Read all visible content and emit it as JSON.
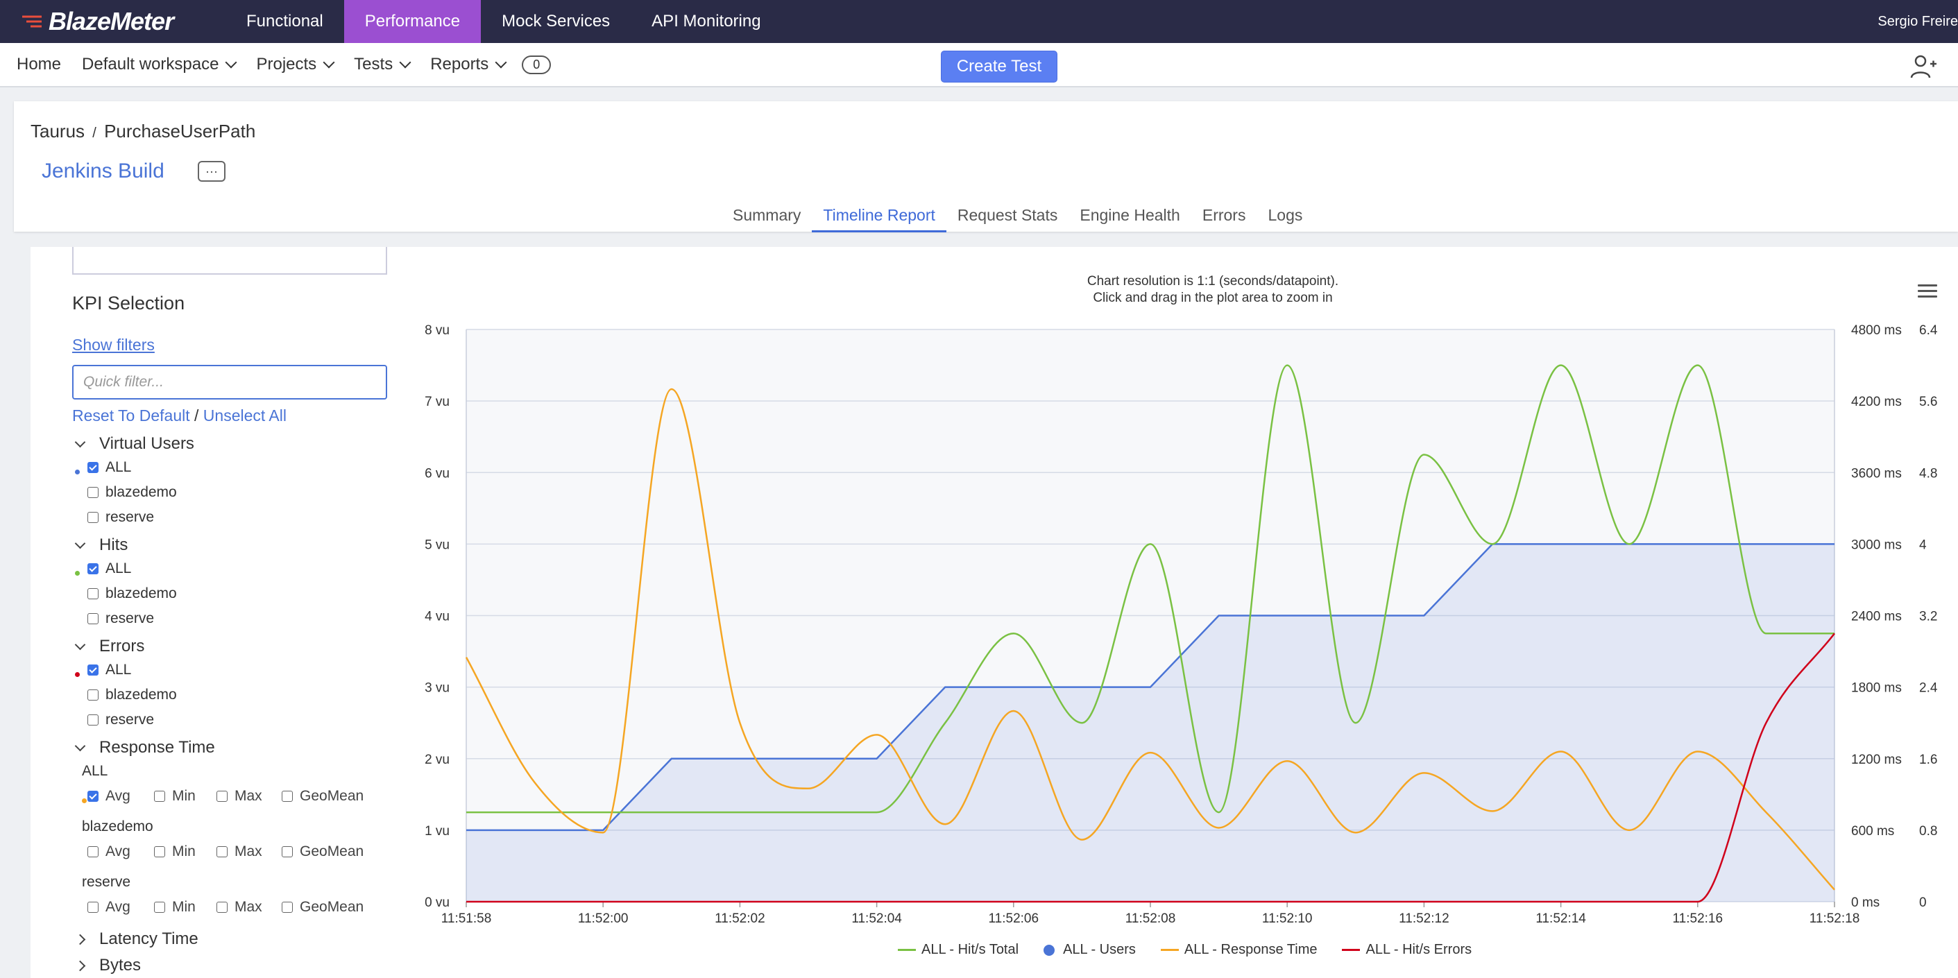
{
  "app": {
    "logo": "BlazeMeter",
    "top_nav": [
      "Functional",
      "Performance",
      "Mock Services",
      "API Monitoring"
    ],
    "active_top_nav": "Performance",
    "user": "Sergio Freire"
  },
  "subnav": {
    "home": "Home",
    "workspace": "Default workspace",
    "projects": "Projects",
    "tests": "Tests",
    "reports": "Reports",
    "reports_count": "0",
    "create_test": "Create Test"
  },
  "header": {
    "breadcrumb_project": "Taurus",
    "breadcrumb_sep": "/",
    "breadcrumb_test": "PurchaseUserPath",
    "title": "Jenkins Build",
    "more": "···",
    "tabs": [
      "Summary",
      "Timeline Report",
      "Request Stats",
      "Engine Health",
      "Errors",
      "Logs"
    ],
    "active_tab": "Timeline Report"
  },
  "kpi": {
    "title": "KPI Selection",
    "show_filters": "Show filters",
    "quick_filter_placeholder": "Quick filter...",
    "reset": "Reset To Default",
    "sep": "/",
    "unselect": "Unselect All",
    "groups": [
      {
        "label": "Virtual Users",
        "color": "#4a74d6",
        "items": [
          {
            "label": "ALL",
            "checked": true
          },
          {
            "label": "blazedemo",
            "checked": false
          },
          {
            "label": "reserve",
            "checked": false
          }
        ]
      },
      {
        "label": "Hits",
        "color": "#7ac143",
        "items": [
          {
            "label": "ALL",
            "checked": true
          },
          {
            "label": "blazedemo",
            "checked": false
          },
          {
            "label": "reserve",
            "checked": false
          }
        ]
      },
      {
        "label": "Errors",
        "color": "#d0021b",
        "items": [
          {
            "label": "ALL",
            "checked": true
          },
          {
            "label": "blazedemo",
            "checked": false
          },
          {
            "label": "reserve",
            "checked": false
          }
        ]
      }
    ],
    "response_time": {
      "label": "Response Time",
      "color": "#f5a623",
      "options": [
        "Avg",
        "Min",
        "Max",
        "GeoMean"
      ],
      "rows": [
        {
          "label": "ALL",
          "checked": [
            true,
            false,
            false,
            false
          ]
        },
        {
          "label": "blazedemo",
          "checked": [
            false,
            false,
            false,
            false
          ]
        },
        {
          "label": "reserve",
          "checked": [
            false,
            false,
            false,
            false
          ]
        }
      ]
    },
    "collapsed_groups": [
      "Latency Time",
      "Bytes"
    ]
  },
  "chart_note": [
    "Chart resolution is 1:1 (seconds/datapoint).",
    "Click and drag in the plot area to zoom in"
  ],
  "chart_data": {
    "type": "line",
    "x": [
      "11:51:58",
      "11:51:59",
      "11:52:00",
      "11:52:01",
      "11:52:02",
      "11:52:03",
      "11:52:04",
      "11:52:05",
      "11:52:06",
      "11:52:07",
      "11:52:08",
      "11:52:09",
      "11:52:10",
      "11:52:11",
      "11:52:12",
      "11:52:13",
      "11:52:14",
      "11:52:15",
      "11:52:16",
      "11:52:17",
      "11:52:18"
    ],
    "x_tick_labels": [
      "11:51:58",
      "11:52:00",
      "11:52:02",
      "11:52:04",
      "11:52:06",
      "11:52:08",
      "11:52:10",
      "11:52:12",
      "11:52:14",
      "11:52:16",
      "11:52:18"
    ],
    "y_left": {
      "ticks": [
        "0 vu",
        "1 vu",
        "2 vu",
        "3 vu",
        "4 vu",
        "5 vu",
        "6 vu",
        "7 vu",
        "8 vu"
      ],
      "range": [
        0,
        8
      ]
    },
    "y_right1": {
      "ticks": [
        "0 ms",
        "600 ms",
        "1200 ms",
        "1800 ms",
        "2400 ms",
        "3000 ms",
        "3600 ms",
        "4200 ms",
        "4800 ms"
      ],
      "range": [
        0,
        4800
      ]
    },
    "y_right2": {
      "ticks": [
        "0",
        "0.8",
        "1.6",
        "2.4",
        "3.2",
        "4",
        "4.8",
        "5.6",
        "6.4"
      ],
      "range": [
        0,
        6.4
      ]
    },
    "series": [
      {
        "name": "ALL - Users",
        "axis": "left",
        "color": "#4a74d6",
        "shape": "step-area",
        "values": [
          1,
          1,
          1,
          2,
          2,
          2,
          2,
          3,
          3,
          3,
          3,
          4,
          4,
          4,
          4,
          5,
          5,
          5,
          5,
          5,
          5
        ]
      },
      {
        "name": "ALL - Hit/s Total",
        "axis": "right2",
        "color": "#7ac143",
        "values": [
          1,
          1,
          1,
          1,
          1,
          1,
          1,
          2,
          3,
          2,
          4,
          1,
          6,
          2,
          5,
          4,
          6,
          4,
          6,
          3,
          3
        ]
      },
      {
        "name": "ALL - Response Time",
        "axis": "right1",
        "color": "#f5a623",
        "values": [
          2050,
          1000,
          580,
          4300,
          1500,
          950,
          1400,
          650,
          1600,
          520,
          1250,
          620,
          1180,
          580,
          1080,
          760,
          1260,
          600,
          1260,
          750,
          100
        ]
      },
      {
        "name": "ALL - Hit/s Errors",
        "axis": "right2",
        "color": "#d0021b",
        "values": [
          0,
          0,
          0,
          0,
          0,
          0,
          0,
          0,
          0,
          0,
          0,
          0,
          0,
          0,
          0,
          0,
          0,
          0,
          0,
          2,
          3
        ]
      }
    ],
    "legend": [
      "ALL - Hit/s Total",
      "ALL - Users",
      "ALL - Response Time",
      "ALL - Hit/s Errors"
    ],
    "legend_position": "bottom"
  }
}
